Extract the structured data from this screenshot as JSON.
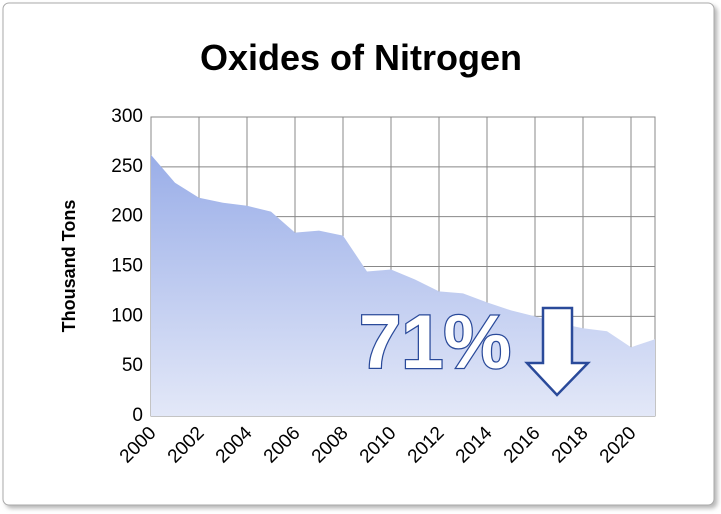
{
  "chart_data": {
    "type": "area",
    "title": "Oxides of Nitrogen",
    "y_label": "Thousand Tons",
    "x": [
      2000,
      2001,
      2002,
      2003,
      2004,
      2005,
      2006,
      2007,
      2008,
      2009,
      2010,
      2011,
      2012,
      2013,
      2014,
      2015,
      2016,
      2017,
      2018,
      2019,
      2020,
      2021
    ],
    "values": [
      262,
      234,
      219,
      214,
      211,
      205,
      184,
      186,
      181,
      145,
      147,
      137,
      125,
      123,
      114,
      106,
      100,
      93,
      88,
      85,
      69,
      77
    ],
    "color": "#9aaee8",
    "xlim": [
      2000,
      2021
    ],
    "xticks": [
      2000,
      2002,
      2004,
      2006,
      2008,
      2010,
      2012,
      2014,
      2016,
      2018,
      2020
    ],
    "ylim": [
      0,
      300
    ],
    "yticks": [
      0,
      50,
      100,
      150,
      200,
      250,
      300
    ],
    "grid": true,
    "annotation": "71%"
  }
}
